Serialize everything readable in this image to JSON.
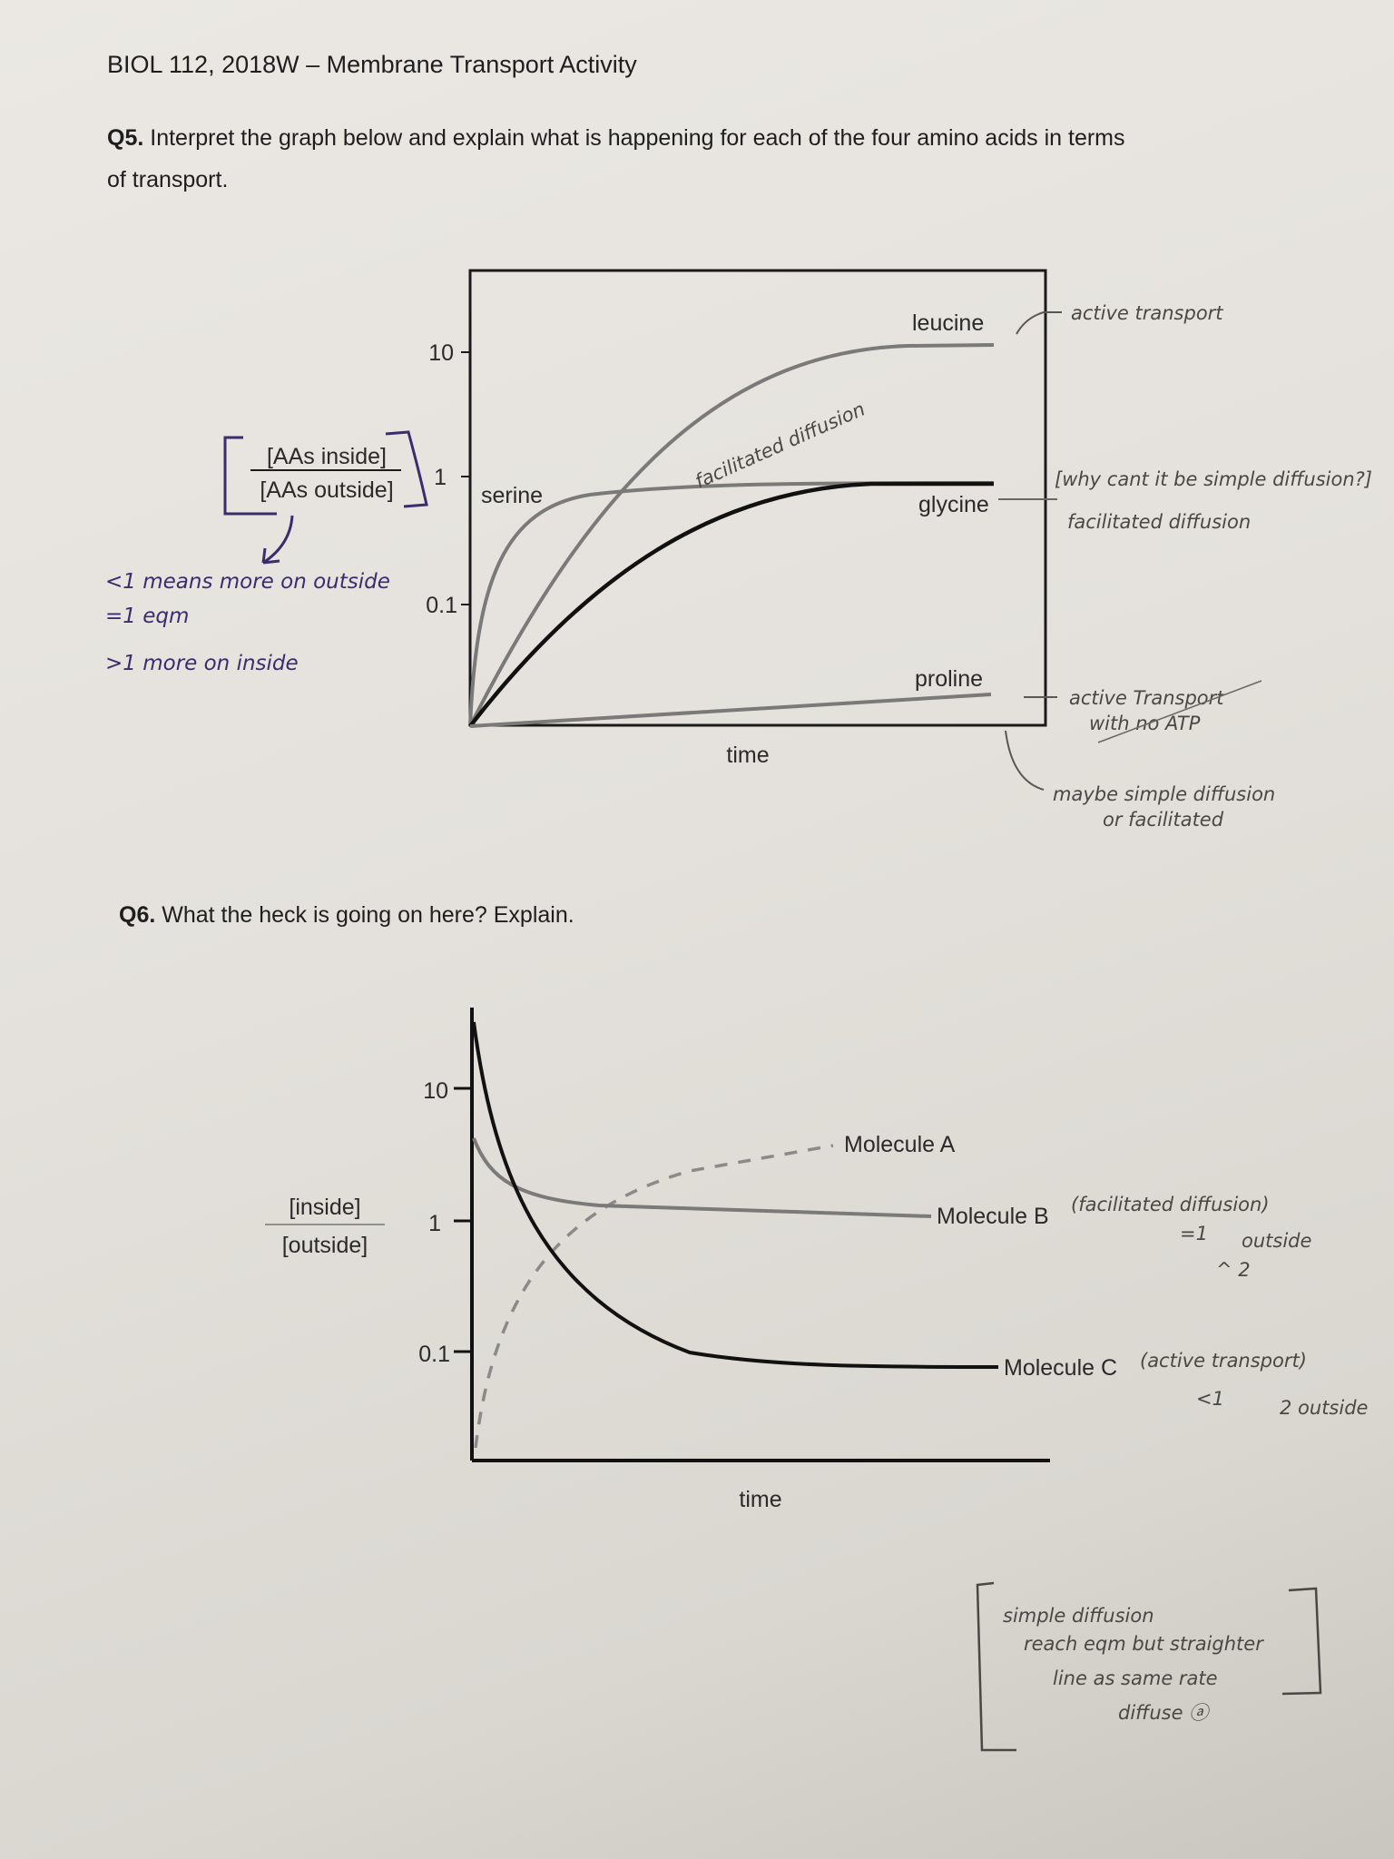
{
  "header": {
    "title": "BIOL 112, 2018W – Membrane Transport Activity"
  },
  "q5": {
    "number": "Q5.",
    "prompt_line1": "Interpret the graph below and explain what is happening for each of the four amino acids in terms",
    "prompt_line2": "of transport.",
    "chart": {
      "y_label_numerator": "[AAs inside]",
      "y_label_denominator": "[AAs outside]",
      "y_ticks": [
        "10",
        "1",
        "0.1"
      ],
      "x_label": "time",
      "series": [
        "leucine",
        "serine",
        "glycine",
        "proline"
      ]
    },
    "annotations": {
      "leucine": "active transport",
      "glycine_question": "[why cant it be simple diffusion?]",
      "glycine": "facilitated diffusion",
      "serine_curve": "facilitated diffusion",
      "proline_line1": "active Transport",
      "proline_line2": "with no ATP",
      "proline_alt_line1": "maybe simple diffusion",
      "proline_alt_line2": "or facilitated",
      "ratio_lt1": "<1 means more on outside",
      "ratio_eq1": "=1 eqm",
      "ratio_gt1": ">1 more on inside"
    }
  },
  "q6": {
    "number": "Q6.",
    "prompt": "What the heck is going on here? Explain.",
    "chart": {
      "y_label_numerator": "[inside]",
      "y_label_denominator": "[outside]",
      "y_ticks": [
        "10",
        "1",
        "0.1"
      ],
      "x_label": "time",
      "series": [
        "Molecule A",
        "Molecule B",
        "Molecule C"
      ]
    },
    "annotations": {
      "molecule_b": "(facilitated diffusion)",
      "molecule_b_eq": "=1",
      "molecule_b_outside": "outside",
      "molecule_b_mark": "^ 2",
      "molecule_c": "(active transport)",
      "molecule_c_lt": "<1",
      "molecule_c_outside": "2 outside",
      "molecule_a_line1": "simple diffusion",
      "molecule_a_line2": "reach eqm but straighter",
      "molecule_a_line3": "line as same rate",
      "molecule_a_line4": "diffuse ⓐ"
    }
  },
  "colors": {
    "paper": "#e6e3de",
    "ink_print": "#1e1e1e",
    "curve_gray": "#7a7a7a",
    "pencil": "#4a4744",
    "purple_pen": "#3b2c6e"
  }
}
